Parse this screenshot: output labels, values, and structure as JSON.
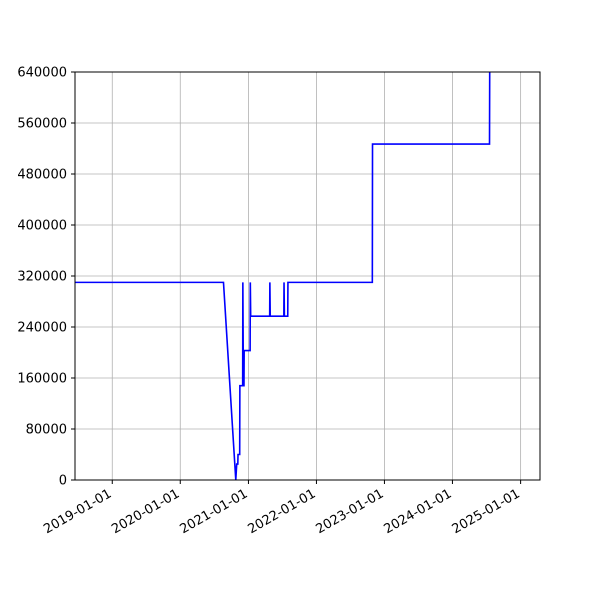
{
  "chart_data": {
    "type": "line",
    "title": "",
    "xlabel": "",
    "ylabel": "",
    "x_axis_type": "date",
    "xlim": [
      "2018-06-15",
      "2025-04-15"
    ],
    "ylim": [
      0,
      640000
    ],
    "grid": true,
    "x_ticks": [
      "2019-01-01",
      "2020-01-01",
      "2021-01-01",
      "2022-01-01",
      "2023-01-01",
      "2024-01-01",
      "2025-01-01"
    ],
    "y_ticks": [
      0,
      80000,
      160000,
      240000,
      320000,
      400000,
      480000,
      560000,
      640000
    ],
    "y_tick_labels": [
      "0",
      "80000",
      "160000",
      "240000",
      "320000",
      "400000",
      "480000",
      "560000",
      "640000"
    ],
    "colors": {
      "line": "#0000ff",
      "grid": "#b0b0b0",
      "axes": "#000000"
    },
    "series": [
      {
        "color": "#0000ff",
        "points": [
          [
            "2018-06-15",
            310000
          ],
          [
            "2020-08-20",
            310000
          ],
          [
            "2020-10-25",
            0
          ],
          [
            "2020-10-30",
            25000
          ],
          [
            "2020-11-05",
            25000
          ],
          [
            "2020-11-06",
            40000
          ],
          [
            "2020-11-15",
            40000
          ],
          [
            "2020-11-16",
            148000
          ],
          [
            "2020-12-01",
            148000
          ],
          [
            "2020-12-02",
            310000
          ],
          [
            "2020-12-05",
            148000
          ],
          [
            "2020-12-08",
            148000
          ],
          [
            "2020-12-09",
            203000
          ],
          [
            "2021-01-10",
            203000
          ],
          [
            "2021-01-11",
            310000
          ],
          [
            "2021-01-13",
            257000
          ],
          [
            "2021-04-25",
            257000
          ],
          [
            "2021-04-26",
            310000
          ],
          [
            "2021-04-28",
            257000
          ],
          [
            "2021-07-10",
            257000
          ],
          [
            "2021-07-11",
            310000
          ],
          [
            "2021-07-13",
            257000
          ],
          [
            "2021-07-31",
            257000
          ],
          [
            "2021-08-01",
            310000
          ],
          [
            "2022-10-28",
            310000
          ],
          [
            "2022-10-29",
            527000
          ],
          [
            "2024-07-18",
            527000
          ],
          [
            "2024-07-19",
            640000
          ]
        ]
      }
    ]
  }
}
